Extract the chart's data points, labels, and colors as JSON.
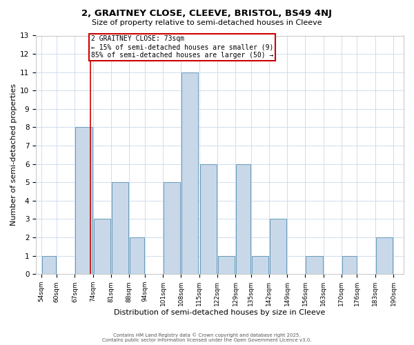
{
  "title": "2, GRAITNEY CLOSE, CLEEVE, BRISTOL, BS49 4NJ",
  "subtitle": "Size of property relative to semi-detached houses in Cleeve",
  "xlabel": "Distribution of semi-detached houses by size in Cleeve",
  "ylabel": "Number of semi-detached properties",
  "bins": [
    54,
    60,
    67,
    74,
    81,
    88,
    94,
    101,
    108,
    115,
    122,
    129,
    135,
    142,
    149,
    156,
    163,
    170,
    176,
    183,
    190
  ],
  "counts": [
    1,
    0,
    8,
    3,
    5,
    2,
    0,
    5,
    11,
    6,
    1,
    6,
    1,
    3,
    0,
    1,
    0,
    1,
    0,
    2
  ],
  "bar_color": "#c8d8e8",
  "bar_edge_color": "#6699bb",
  "red_line_x": 73,
  "annotation_title": "2 GRAITNEY CLOSE: 73sqm",
  "annotation_line1": "← 15% of semi-detached houses are smaller (9)",
  "annotation_line2": "85% of semi-detached houses are larger (50) →",
  "annotation_box_color": "#ffffff",
  "annotation_box_edge": "#cc0000",
  "red_line_color": "#cc0000",
  "ylim": [
    0,
    13
  ],
  "yticks": [
    0,
    1,
    2,
    3,
    4,
    5,
    6,
    7,
    8,
    9,
    10,
    11,
    12,
    13
  ],
  "background_color": "#ffffff",
  "grid_color": "#c8d8ea",
  "footer1": "Contains HM Land Registry data © Crown copyright and database right 2025.",
  "footer2": "Contains public sector information licensed under the Open Government Licence v3.0."
}
